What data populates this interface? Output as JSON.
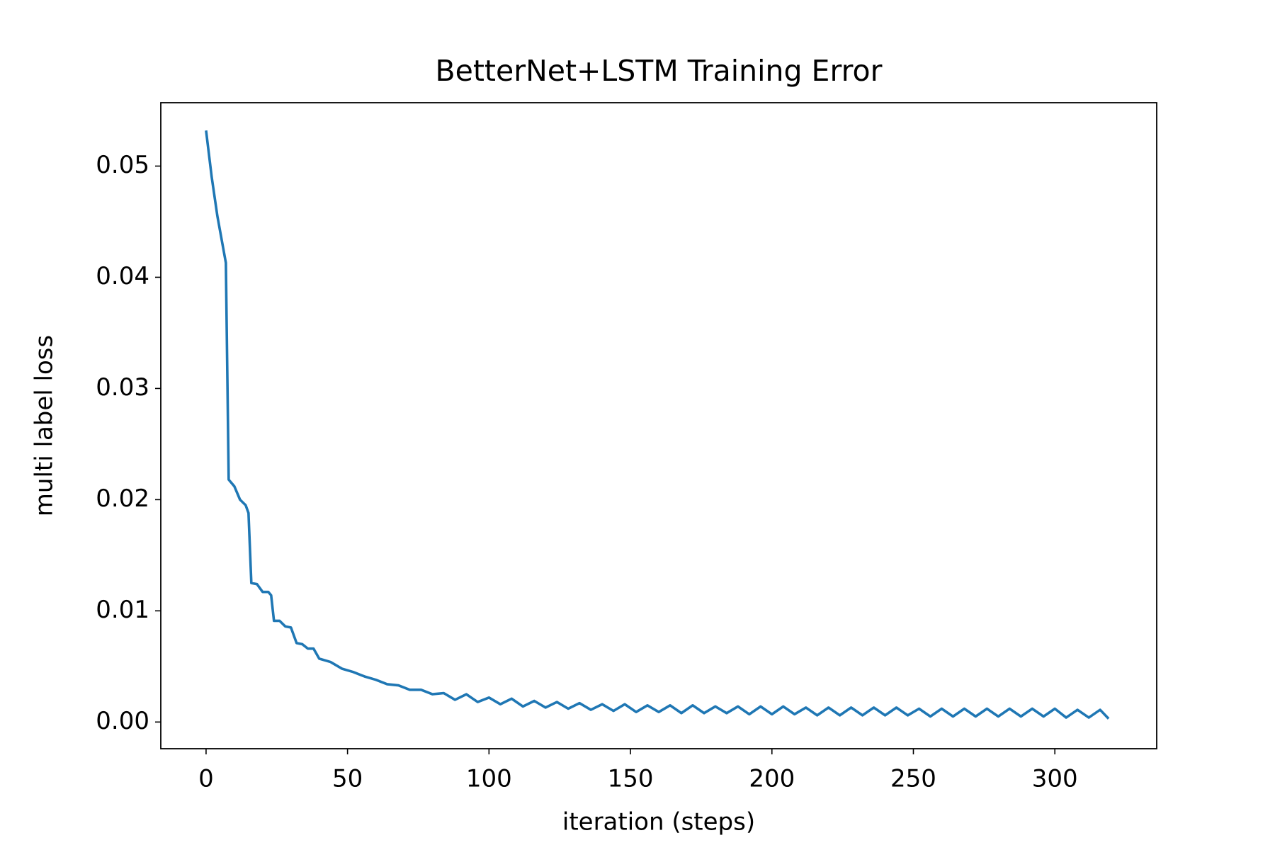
{
  "chart_data": {
    "type": "line",
    "title": "BetterNet+LSTM Training Error",
    "xlabel": "iteration (steps)",
    "ylabel": "multi label loss",
    "color": "#1f77b4",
    "grid": false,
    "xlim": [
      -16,
      336
    ],
    "ylim": [
      -0.0024,
      0.0557
    ],
    "xticks": [
      0,
      50,
      100,
      150,
      200,
      250,
      300
    ],
    "yticks": [
      {
        "value": 0,
        "label": "0.00"
      },
      0.01,
      0.02,
      0.03,
      0.04,
      0.05
    ],
    "x": [
      0,
      2,
      4,
      7,
      8,
      10,
      12,
      14,
      15,
      16,
      18,
      20,
      22,
      23,
      24,
      26,
      28,
      30,
      32,
      34,
      36,
      38,
      40,
      44,
      48,
      52,
      56,
      60,
      64,
      68,
      72,
      76,
      80,
      84,
      88,
      92,
      96,
      100,
      104,
      108,
      112,
      116,
      120,
      124,
      128,
      132,
      136,
      140,
      144,
      148,
      152,
      156,
      160,
      164,
      168,
      172,
      176,
      180,
      184,
      188,
      192,
      196,
      200,
      204,
      208,
      212,
      216,
      220,
      224,
      228,
      232,
      236,
      240,
      244,
      248,
      252,
      256,
      260,
      264,
      268,
      272,
      276,
      280,
      284,
      288,
      292,
      296,
      300,
      304,
      308,
      312,
      316,
      319
    ],
    "values": [
      0.0532,
      0.049,
      0.0455,
      0.0413,
      0.0218,
      0.0212,
      0.02,
      0.0195,
      0.0188,
      0.0125,
      0.0124,
      0.0117,
      0.0117,
      0.0114,
      0.0091,
      0.0091,
      0.0086,
      0.0085,
      0.0071,
      0.007,
      0.0066,
      0.0066,
      0.0057,
      0.0054,
      0.0048,
      0.0045,
      0.0041,
      0.0038,
      0.0034,
      0.0033,
      0.0029,
      0.0029,
      0.0025,
      0.0026,
      0.002,
      0.0025,
      0.0018,
      0.0022,
      0.0016,
      0.0021,
      0.0014,
      0.0019,
      0.0013,
      0.0018,
      0.0012,
      0.0017,
      0.0011,
      0.0016,
      0.001,
      0.0016,
      0.0009,
      0.0015,
      0.0009,
      0.0015,
      0.0008,
      0.0015,
      0.0008,
      0.0014,
      0.0008,
      0.0014,
      0.0007,
      0.0014,
      0.0007,
      0.0014,
      0.0007,
      0.0013,
      0.0006,
      0.0013,
      0.0006,
      0.0013,
      0.0006,
      0.0013,
      0.0006,
      0.0013,
      0.0006,
      0.0012,
      0.0005,
      0.0012,
      0.0005,
      0.0012,
      0.0005,
      0.0012,
      0.0005,
      0.0012,
      0.0005,
      0.0012,
      0.0005,
      0.0012,
      0.0004,
      0.0011,
      0.0004,
      0.0011,
      0.0003
    ]
  }
}
